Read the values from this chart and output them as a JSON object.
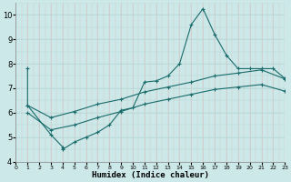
{
  "xlabel": "Humidex (Indice chaleur)",
  "xlim": [
    0,
    23
  ],
  "ylim": [
    4,
    10.5
  ],
  "xticks": [
    0,
    1,
    2,
    3,
    4,
    5,
    6,
    7,
    8,
    9,
    10,
    11,
    12,
    13,
    14,
    15,
    16,
    17,
    18,
    19,
    20,
    21,
    22,
    23
  ],
  "yticks": [
    4,
    5,
    6,
    7,
    8,
    9,
    10
  ],
  "bg_color": "#cce8e8",
  "grid_color_v": "#d4c8c8",
  "grid_color_h": "#b8d8d8",
  "line_color": "#1a6b6b",
  "line1_x": [
    1,
    1,
    3,
    4,
    4,
    5,
    6,
    7,
    8,
    9,
    10,
    11,
    12,
    13,
    14,
    15,
    16,
    17,
    18,
    19,
    20,
    21,
    22,
    23
  ],
  "line1_y": [
    7.8,
    6.3,
    5.1,
    4.6,
    4.5,
    4.8,
    5.0,
    5.2,
    5.5,
    6.1,
    6.2,
    7.25,
    7.3,
    7.5,
    8.0,
    9.6,
    10.25,
    9.2,
    8.35,
    7.8,
    7.8,
    7.8,
    7.8,
    7.4
  ],
  "line2_x": [
    1,
    3,
    5,
    7,
    9,
    11,
    13,
    15,
    17,
    19,
    21,
    23
  ],
  "line2_y": [
    6.3,
    5.8,
    6.05,
    6.35,
    6.55,
    6.85,
    7.05,
    7.25,
    7.5,
    7.62,
    7.75,
    7.38
  ],
  "line3_x": [
    1,
    3,
    5,
    7,
    9,
    11,
    13,
    15,
    17,
    19,
    21,
    23
  ],
  "line3_y": [
    6.0,
    5.3,
    5.5,
    5.8,
    6.05,
    6.35,
    6.55,
    6.75,
    6.95,
    7.05,
    7.15,
    6.88
  ]
}
